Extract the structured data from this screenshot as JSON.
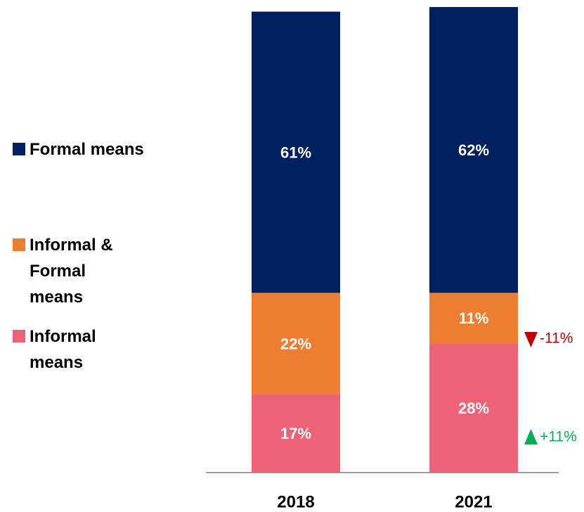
{
  "chart_data": {
    "type": "stacked_bar",
    "categories": [
      "2018",
      "2021"
    ],
    "series": [
      {
        "name": "Informal means",
        "color": "#ec6277",
        "values": [
          17,
          28
        ],
        "value_labels": [
          "17%",
          "28%"
        ]
      },
      {
        "name": "Informal & Formal means",
        "color": "#ed7d31",
        "values": [
          22,
          11
        ],
        "value_labels": [
          "22%",
          "11%"
        ]
      },
      {
        "name": "Formal means",
        "color": "#002060",
        "values": [
          61,
          62
        ],
        "value_labels": [
          "61%",
          "62%"
        ]
      }
    ],
    "annotations": [
      {
        "text": "-11%",
        "color": "#c00000"
      },
      {
        "text": "+11%",
        "color": "#00b050"
      }
    ]
  }
}
